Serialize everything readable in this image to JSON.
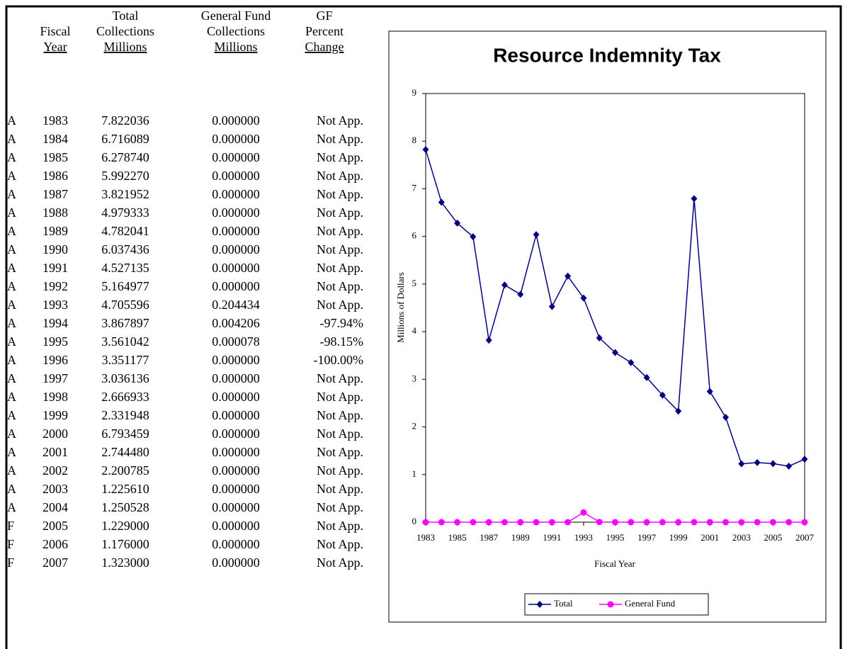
{
  "table": {
    "headers": [
      [
        "Fiscal",
        "Year"
      ],
      [
        "Total",
        "Collections",
        "Millions"
      ],
      [
        "General Fund",
        "Collections",
        "Millions"
      ],
      [
        "GF",
        "Percent",
        "Change"
      ]
    ],
    "rows": [
      [
        "A",
        "1983",
        "7.822036",
        "0.000000",
        "Not App."
      ],
      [
        "A",
        "1984",
        "6.716089",
        "0.000000",
        "Not App."
      ],
      [
        "A",
        "1985",
        "6.278740",
        "0.000000",
        "Not App."
      ],
      [
        "A",
        "1986",
        "5.992270",
        "0.000000",
        "Not App."
      ],
      [
        "A",
        "1987",
        "3.821952",
        "0.000000",
        "Not App."
      ],
      [
        "A",
        "1988",
        "4.979333",
        "0.000000",
        "Not App."
      ],
      [
        "A",
        "1989",
        "4.782041",
        "0.000000",
        "Not App."
      ],
      [
        "A",
        "1990",
        "6.037436",
        "0.000000",
        "Not App."
      ],
      [
        "A",
        "1991",
        "4.527135",
        "0.000000",
        "Not App."
      ],
      [
        "A",
        "1992",
        "5.164977",
        "0.000000",
        "Not App."
      ],
      [
        "A",
        "1993",
        "4.705596",
        "0.204434",
        "Not App."
      ],
      [
        "A",
        "1994",
        "3.867897",
        "0.004206",
        "-97.94%"
      ],
      [
        "A",
        "1995",
        "3.561042",
        "0.000078",
        "-98.15%"
      ],
      [
        "A",
        "1996",
        "3.351177",
        "0.000000",
        "-100.00%"
      ],
      [
        "A",
        "1997",
        "3.036136",
        "0.000000",
        "Not App."
      ],
      [
        "A",
        "1998",
        "2.666933",
        "0.000000",
        "Not App."
      ],
      [
        "A",
        "1999",
        "2.331948",
        "0.000000",
        "Not App."
      ],
      [
        "A",
        "2000",
        "6.793459",
        "0.000000",
        "Not App."
      ],
      [
        "A",
        "2001",
        "2.744480",
        "0.000000",
        "Not App."
      ],
      [
        "A",
        "2002",
        "2.200785",
        "0.000000",
        "Not App."
      ],
      [
        "A",
        "2003",
        "1.225610",
        "0.000000",
        "Not App."
      ],
      [
        "A",
        "2004",
        "1.250528",
        "0.000000",
        "Not App."
      ],
      [
        "F",
        "2005",
        "1.229000",
        "0.000000",
        "Not App."
      ],
      [
        "F",
        "2006",
        "1.176000",
        "0.000000",
        "Not App."
      ],
      [
        "F",
        "2007",
        "1.323000",
        "0.000000",
        "Not App."
      ]
    ]
  },
  "chart_data": {
    "type": "line",
    "title": "Resource Indemnity Tax",
    "xlabel": "Fiscal Year",
    "ylabel": "Millions of Dollars",
    "x": [
      1983,
      1984,
      1985,
      1986,
      1987,
      1988,
      1989,
      1990,
      1991,
      1992,
      1993,
      1994,
      1995,
      1996,
      1997,
      1998,
      1999,
      2000,
      2001,
      2002,
      2003,
      2004,
      2005,
      2006,
      2007
    ],
    "series": [
      {
        "name": "Total",
        "color": "#000080",
        "marker": "diamond",
        "values": [
          7.822036,
          6.716089,
          6.27874,
          5.99227,
          3.821952,
          4.979333,
          4.782041,
          6.037436,
          4.527135,
          5.164977,
          4.705596,
          3.867897,
          3.561042,
          3.351177,
          3.036136,
          2.666933,
          2.331948,
          6.793459,
          2.74448,
          2.200785,
          1.22561,
          1.250528,
          1.229,
          1.176,
          1.323
        ]
      },
      {
        "name": "General Fund",
        "color": "#ff00ff",
        "marker": "circle",
        "values": [
          0,
          0,
          0,
          0,
          0,
          0,
          0,
          0,
          0,
          0,
          0.204434,
          0.004206,
          7.8e-05,
          0,
          0,
          0,
          0,
          0,
          0,
          0,
          0,
          0,
          0,
          0,
          0
        ]
      }
    ],
    "xlim": [
      1983,
      2007
    ],
    "xticks": [
      1983,
      1985,
      1987,
      1989,
      1991,
      1993,
      1995,
      1997,
      1999,
      2001,
      2003,
      2005,
      2007
    ],
    "ylim": [
      0,
      9
    ],
    "yticks": [
      0,
      1,
      2,
      3,
      4,
      5,
      6,
      7,
      8,
      9
    ],
    "grid": false,
    "legend": "bottom"
  }
}
